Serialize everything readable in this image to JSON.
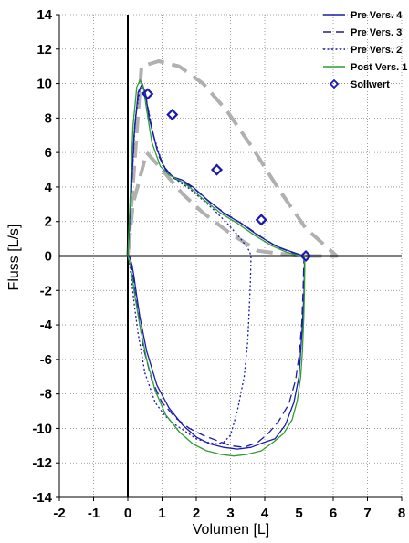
{
  "chart_data": {
    "type": "line",
    "xlabel": "Volumen [L]",
    "ylabel": "Fluss [L/s]",
    "xlim": [
      -2,
      8
    ],
    "ylim": [
      -14,
      14
    ],
    "xticks": [
      -2,
      -1,
      0,
      1,
      2,
      3,
      4,
      5,
      6,
      7,
      8
    ],
    "yticks": [
      -14,
      -12,
      -10,
      -8,
      -6,
      -4,
      -2,
      0,
      2,
      4,
      6,
      8,
      10,
      12,
      14
    ],
    "xtick_labels": [
      "-2",
      "-1",
      "0",
      "1",
      "2",
      "3",
      "4",
      "5",
      "6",
      "7",
      "8"
    ],
    "ytick_labels": [
      "-14",
      "-12",
      "-10",
      "-8",
      "-6",
      "-4",
      "-2",
      "0",
      "2",
      "4",
      "6",
      "8",
      "10",
      "12",
      "14"
    ],
    "grid": true,
    "legend_position": "top-right",
    "series": [
      {
        "name": "Pre Vers. 4",
        "color": "#1a1ab0",
        "style": "solid",
        "x": [
          0,
          0.08,
          0.18,
          0.3,
          0.42,
          0.52,
          0.62,
          0.85,
          1.05,
          1.3,
          1.6,
          1.9,
          2.3,
          2.8,
          3.3,
          3.8,
          4.3,
          4.7,
          5.0,
          5.15,
          5.16,
          5.15,
          5.1,
          5.05,
          5.0,
          4.85,
          4.6,
          4.3,
          4.0,
          3.6,
          3.2,
          2.8,
          2.4,
          2.0,
          1.6,
          1.2,
          0.85,
          0.55,
          0.35,
          0.25,
          0.18,
          0.12,
          0.06,
          0
        ],
        "y": [
          0,
          3,
          7,
          9.5,
          10.0,
          9.4,
          8.0,
          6.2,
          5.2,
          4.6,
          4.4,
          4.0,
          3.3,
          2.5,
          1.9,
          1.2,
          0.6,
          0.3,
          0.1,
          0,
          -0.5,
          -2,
          -4,
          -5.5,
          -7,
          -8.5,
          -9.8,
          -10.6,
          -10.8,
          -11.1,
          -11.2,
          -11.1,
          -10.9,
          -10.5,
          -9.8,
          -8.8,
          -7.5,
          -5.5,
          -3.5,
          -2.2,
          -1.2,
          -0.5,
          -0.1,
          0
        ]
      },
      {
        "name": "Pre Vers. 3",
        "color": "#1a1ab0",
        "style": "dash",
        "x": [
          0,
          0.1,
          0.2,
          0.32,
          0.45,
          0.55,
          0.68,
          0.9,
          1.1,
          1.35,
          1.7,
          2.0,
          2.4,
          2.9,
          3.4,
          3.9,
          4.4,
          4.8,
          5.1,
          5.15,
          5.14,
          5.12,
          5.08,
          5.0,
          4.9,
          4.7,
          4.4,
          4.1,
          3.8,
          3.4,
          3.0,
          2.6,
          2.2,
          1.8,
          1.4,
          1.0,
          0.7,
          0.45,
          0.3,
          0.2,
          0.14,
          0.08,
          0
        ],
        "y": [
          0,
          3.5,
          7.5,
          9.6,
          9.8,
          9.0,
          7.6,
          5.8,
          5.0,
          4.5,
          4.2,
          3.8,
          3.1,
          2.4,
          1.8,
          1.1,
          0.5,
          0.2,
          0.05,
          0,
          -0.5,
          -2,
          -4,
          -5.8,
          -7.2,
          -8.6,
          -9.6,
          -10.3,
          -10.8,
          -11.1,
          -11.0,
          -10.7,
          -10.4,
          -10.0,
          -9.4,
          -8.5,
          -7.2,
          -5.3,
          -3.3,
          -2.0,
          -1.0,
          -0.3,
          0
        ]
      },
      {
        "name": "Pre Vers. 2",
        "color": "#1a1ab0",
        "style": "dot",
        "x": [
          0,
          0.1,
          0.22,
          0.35,
          0.48,
          0.6,
          0.75,
          1.0,
          1.2,
          1.5,
          1.8,
          2.1,
          2.5,
          2.9,
          3.3,
          3.55,
          3.6,
          3.58,
          3.55,
          3.5,
          3.4,
          3.2,
          3.0,
          2.8,
          2.6,
          2.3,
          2.0,
          1.7,
          1.4,
          1.1,
          0.8,
          0.5,
          0.3,
          0.2,
          0.12,
          0.06,
          0
        ],
        "y": [
          0,
          3.8,
          8.0,
          9.6,
          9.4,
          8.5,
          7.0,
          5.4,
          4.8,
          4.3,
          3.9,
          3.4,
          2.7,
          1.9,
          1.0,
          0.3,
          0,
          -1.5,
          -3,
          -5,
          -7,
          -9,
          -10.4,
          -10.8,
          -10.9,
          -10.8,
          -10.6,
          -10.2,
          -9.8,
          -9.3,
          -8.5,
          -6.8,
          -4.5,
          -3.0,
          -1.6,
          -0.6,
          0
        ]
      },
      {
        "name": "Post Vers. 1",
        "color": "#2e9e2e",
        "style": "solid",
        "x": [
          0,
          0.06,
          0.15,
          0.26,
          0.36,
          0.45,
          0.55,
          0.7,
          0.95,
          1.2,
          1.5,
          1.8,
          2.2,
          2.7,
          3.2,
          3.7,
          4.2,
          4.6,
          4.95,
          5.15,
          5.17,
          5.16,
          5.14,
          5.1,
          5.05,
          4.95,
          4.8,
          4.55,
          4.25,
          3.9,
          3.5,
          3.1,
          2.7,
          2.3,
          1.9,
          1.5,
          1.1,
          0.8,
          0.55,
          0.35,
          0.22,
          0.14,
          0.07,
          0
        ],
        "y": [
          0,
          3,
          7.5,
          9.8,
          10.2,
          9.8,
          8.5,
          6.6,
          5.2,
          4.7,
          4.4,
          4.0,
          3.3,
          2.5,
          1.9,
          1.2,
          0.6,
          0.25,
          0.05,
          0,
          -0.5,
          -2,
          -3.5,
          -5.5,
          -7,
          -8.4,
          -9.5,
          -10.3,
          -10.8,
          -11.3,
          -11.5,
          -11.6,
          -11.5,
          -11.3,
          -10.9,
          -10.2,
          -9.2,
          -7.8,
          -6.0,
          -4.0,
          -2.5,
          -1.4,
          -0.5,
          0
        ]
      }
    ],
    "reference_area": {
      "color": "#b0b0b0",
      "style": "dash",
      "x": [
        0,
        0.4,
        0.9,
        1.5,
        2.2,
        2.9,
        3.6,
        4.4,
        5.2,
        6.1,
        5.0,
        3.8,
        3.0,
        2.2,
        1.6,
        1.0,
        0.55,
        0.15,
        0
      ],
      "y": [
        0,
        11.0,
        11.3,
        11.0,
        10.0,
        8.4,
        6.4,
        3.9,
        1.6,
        0,
        0,
        0.3,
        1.3,
        2.5,
        3.6,
        5.0,
        6.0,
        3.0,
        0
      ]
    },
    "sollwert": {
      "name": "Sollwert",
      "color": "#1a1ab0",
      "x": [
        0.58,
        1.3,
        2.6,
        3.9,
        5.2
      ],
      "y": [
        9.4,
        8.2,
        5.0,
        2.1,
        0
      ]
    }
  }
}
